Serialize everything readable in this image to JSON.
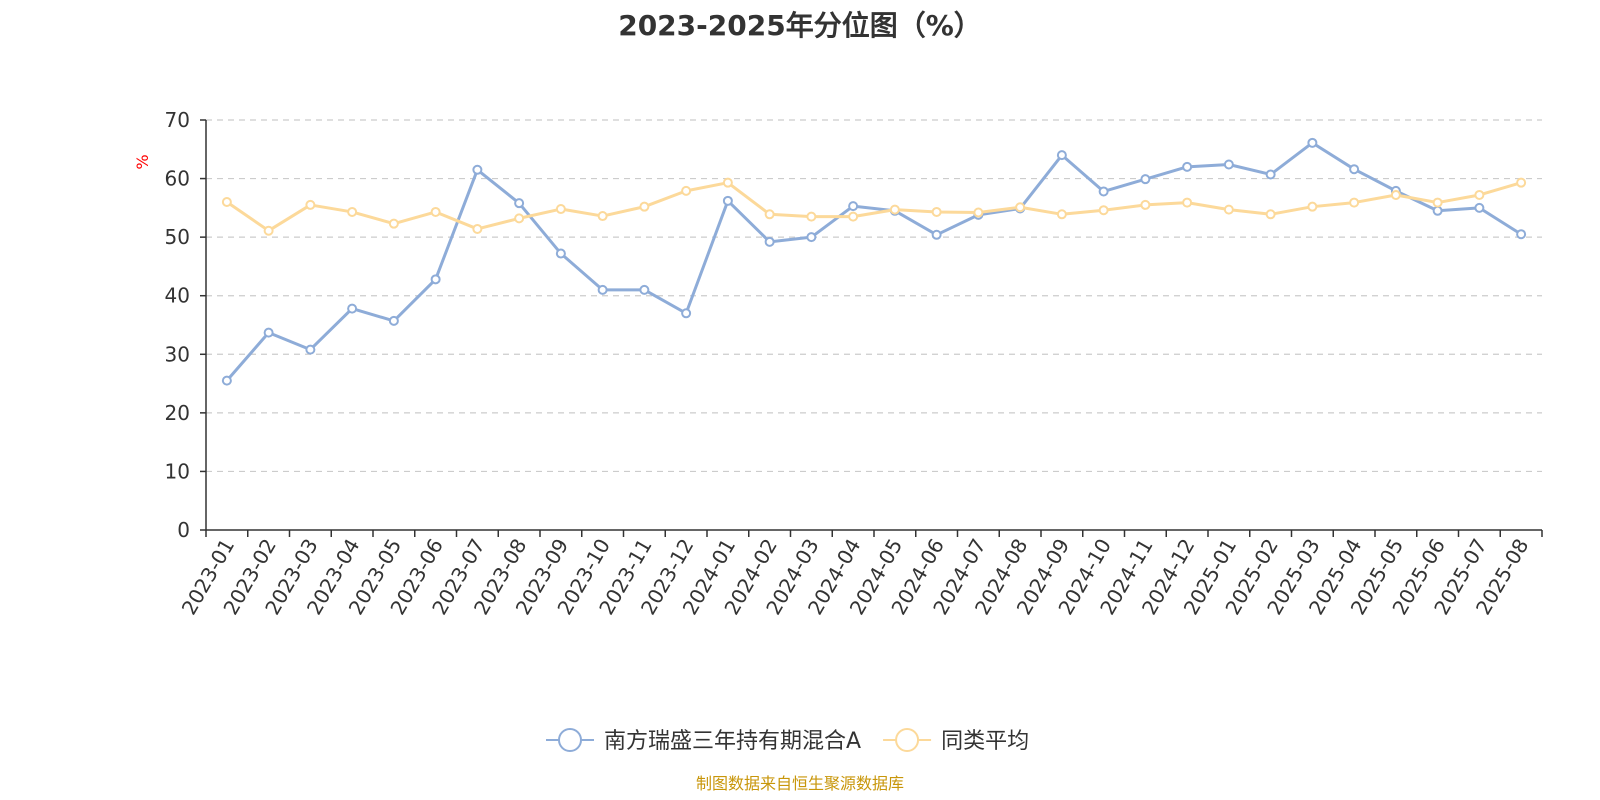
{
  "chart_data": {
    "type": "line",
    "title": "2023-2025年分位图（%）",
    "ylabel": "%",
    "xlabel": "",
    "ylim": [
      0,
      70
    ],
    "yticks": [
      0,
      10,
      20,
      30,
      40,
      50,
      60,
      70
    ],
    "grid": true,
    "legend_position": "bottom-center",
    "categories": [
      "2023-01",
      "2023-02",
      "2023-03",
      "2023-04",
      "2023-05",
      "2023-06",
      "2023-07",
      "2023-08",
      "2023-09",
      "2023-10",
      "2023-11",
      "2023-12",
      "2024-01",
      "2024-02",
      "2024-03",
      "2024-04",
      "2024-05",
      "2024-06",
      "2024-07",
      "2024-08",
      "2024-09",
      "2024-10",
      "2024-11",
      "2024-12",
      "2025-01",
      "2025-02",
      "2025-03",
      "2025-04",
      "2025-05",
      "2025-06",
      "2025-07",
      "2025-08"
    ],
    "series": [
      {
        "name": "南方瑞盛三年持有期混合A",
        "color": "#8eacd8",
        "values": [
          25.5,
          33.7,
          30.8,
          37.8,
          35.7,
          42.8,
          61.5,
          55.8,
          47.2,
          41.0,
          41.0,
          37.0,
          56.2,
          49.2,
          50.0,
          55.3,
          54.5,
          50.4,
          53.8,
          54.9,
          64.0,
          57.8,
          59.9,
          62.0,
          62.4,
          60.7,
          66.1,
          61.6,
          57.9,
          54.5,
          55.0,
          50.5
        ]
      },
      {
        "name": "同类平均",
        "color": "#fcd99a",
        "values": [
          56.0,
          51.1,
          55.5,
          54.3,
          52.3,
          54.3,
          51.4,
          53.2,
          54.8,
          53.6,
          55.2,
          57.9,
          59.3,
          53.9,
          53.5,
          53.5,
          54.7,
          54.3,
          54.2,
          55.1,
          53.9,
          54.6,
          55.5,
          55.9,
          54.7,
          53.9,
          55.2,
          55.9,
          57.2,
          55.9,
          57.2,
          59.3
        ]
      }
    ]
  },
  "footer": {
    "source": "制图数据来自恒生聚源数据库"
  }
}
